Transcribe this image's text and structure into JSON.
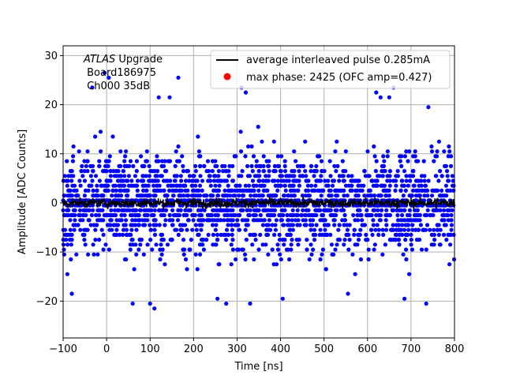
{
  "chart_data": {
    "type": "scatter",
    "title": "",
    "xlabel": "Time [ns]",
    "ylabel": "Amplitude [ADC Counts]",
    "xlim": [
      -100,
      800
    ],
    "ylim": [
      -27.5,
      32
    ],
    "xticks": [
      -100,
      0,
      100,
      200,
      300,
      400,
      500,
      600,
      700,
      800
    ],
    "yticks": [
      -20,
      -10,
      0,
      10,
      20,
      30
    ],
    "grid": true,
    "legend_placement": "top-right",
    "annotation": {
      "line1_italic": "ATLAS",
      "line1_rest": " Upgrade",
      "line2": " Board186975",
      "line3": " Ch000 35dB"
    },
    "series": [
      {
        "name": "average interleaved pulse 0.285mA",
        "kind": "line",
        "color": "#000000",
        "description_values": "flat noise around 0 ADC counts, amplitude within about ±1.5",
        "mean": 0.0,
        "spread": 1.2
      },
      {
        "name": "max phase: 2425 (OFC amp=0.427)",
        "kind": "marker",
        "color": "#ff0000",
        "x": [],
        "y": []
      },
      {
        "name": "",
        "kind": "scatter",
        "color": "#0000ff",
        "quantized_levels": [
          -21.5,
          -20.5,
          -19.5,
          -18.5,
          -17.5,
          -16.5,
          -15.5,
          -14.5,
          -13.5,
          -12.5,
          -11.5,
          -10.5,
          -9.5,
          -8.5,
          -7.5,
          -6.5,
          -5.5,
          -4.5,
          -3.5,
          -2.5,
          -1.5,
          -0.5,
          0.5,
          1.5,
          2.5,
          3.5,
          4.5,
          5.5,
          6.5,
          7.5,
          8.5,
          9.5,
          10.5,
          11.5,
          12.5,
          13.5,
          14.5,
          15.5,
          16.5,
          17.5,
          18.5,
          19.5,
          20.5,
          21.5
        ],
        "outliers_x": [
          -33,
          -5,
          5,
          120,
          145,
          165,
          310,
          320,
          620,
          630,
          650,
          660,
          740,
          -80,
          60,
          100,
          110,
          255,
          275,
          330,
          405,
          555,
          685,
          735
        ],
        "outliers_y": [
          23.5,
          26.5,
          25.5,
          21.5,
          21.5,
          25.5,
          23.5,
          22.5,
          22.5,
          21.5,
          21.5,
          23.5,
          19.5,
          -18.5,
          -20.5,
          -20.5,
          -21.5,
          -19.5,
          -20.5,
          -20.5,
          -19.5,
          -18.5,
          -19.5,
          -20.5
        ]
      }
    ]
  }
}
